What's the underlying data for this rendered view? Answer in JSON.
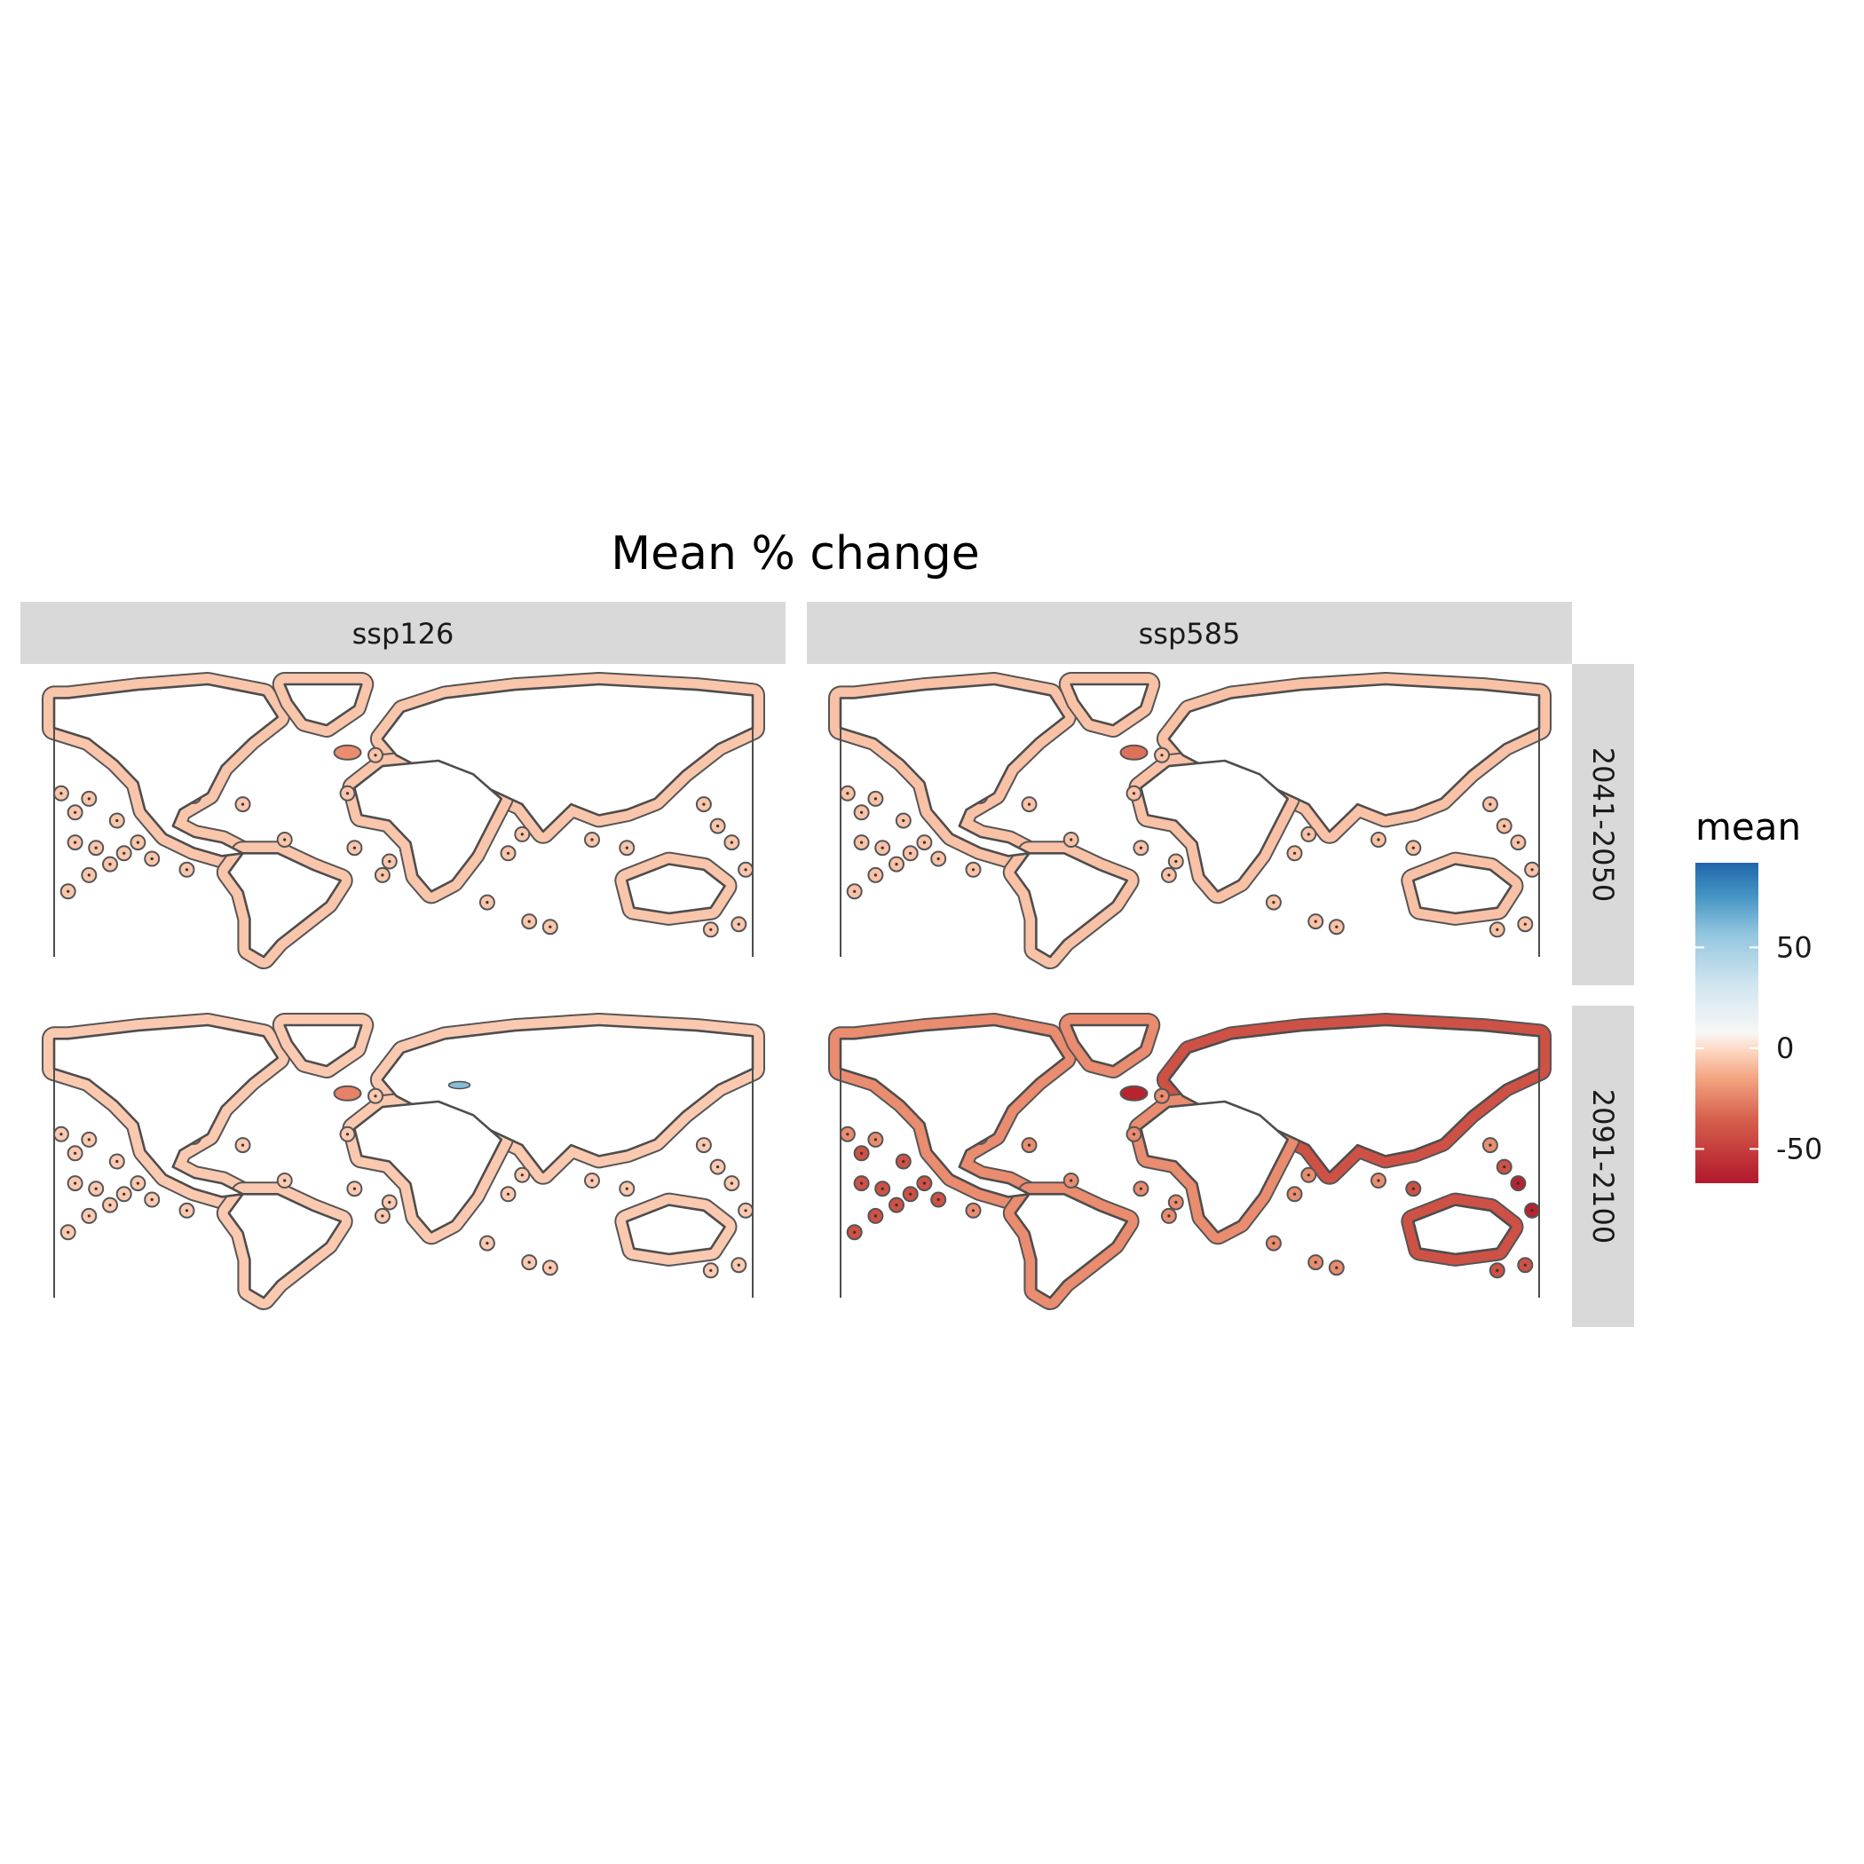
{
  "title": "Mean % change",
  "facets": {
    "columns": [
      "ssp126",
      "ssp585"
    ],
    "rows": [
      "2041-2050",
      "2091-2100"
    ]
  },
  "legend": {
    "title": "mean",
    "ticks": [
      {
        "value": 50,
        "label": "50"
      },
      {
        "value": 0,
        "label": "0"
      },
      {
        "value": -50,
        "label": "-50"
      }
    ],
    "limits": [
      -67,
      92
    ],
    "colors": {
      "low": "#b2182b",
      "mid_low": "#f4a582",
      "mid": "#f7f7f7",
      "mid_high": "#92c5de",
      "high": "#2166ac"
    }
  },
  "panels": [
    {
      "scenario": "ssp126",
      "period": "2041-2050",
      "base_change": -6,
      "hotspot_change": -22,
      "intensity": 0.25,
      "blue_med": false
    },
    {
      "scenario": "ssp585",
      "period": "2041-2050",
      "base_change": -7,
      "hotspot_change": -30,
      "intensity": 0.3,
      "blue_med": false
    },
    {
      "scenario": "ssp126",
      "period": "2091-2100",
      "base_change": -5,
      "hotspot_change": -25,
      "intensity": 0.25,
      "blue_med": true
    },
    {
      "scenario": "ssp585",
      "period": "2091-2100",
      "base_change": -22,
      "hotspot_change": -62,
      "intensity": 1,
      "blue_med": false
    }
  ]
}
